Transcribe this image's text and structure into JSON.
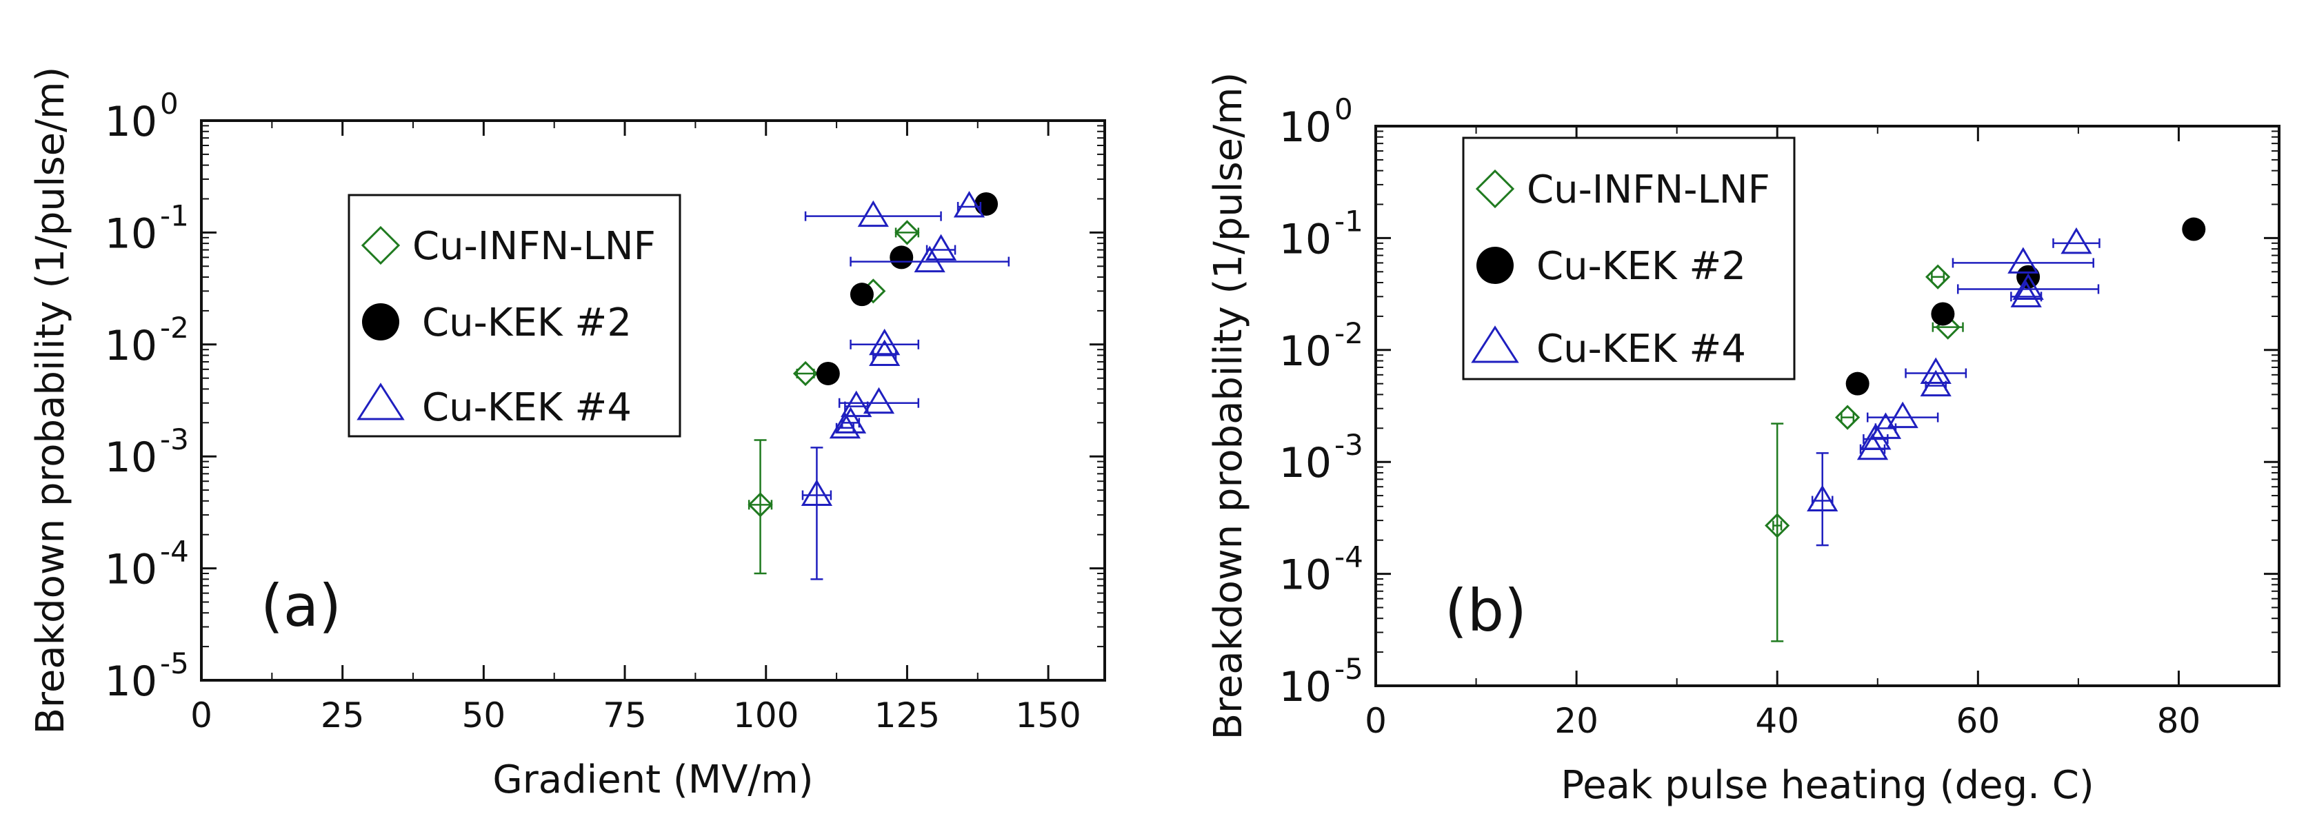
{
  "colors": {
    "inf": "#1f7a1f",
    "kek2": "#000000",
    "kek4": "#1f1fbf",
    "axis": "#111111"
  },
  "chart_data": [
    {
      "type": "scatter",
      "panel_label": "(a)",
      "xlabel": "Gradient (MV/m)",
      "ylabel": "Breakdown probability (1/pulse/m)",
      "xlim": [
        0,
        160
      ],
      "xticks": [
        0,
        25,
        50,
        75,
        100,
        125,
        150
      ],
      "xtick_labels": [
        "0",
        "25",
        "50",
        "75",
        "100",
        "125",
        "150"
      ],
      "ylim_log10": [
        -5,
        0
      ],
      "ytick_labels": [
        {
          "exp": 0,
          "base": "10",
          "sup": "0"
        },
        {
          "exp": -1,
          "base": "10",
          "sup": "-1"
        },
        {
          "exp": -2,
          "base": "10",
          "sup": "-2"
        },
        {
          "exp": -3,
          "base": "10",
          "sup": "-3"
        },
        {
          "exp": -4,
          "base": "10",
          "sup": "-4"
        },
        {
          "exp": -5,
          "base": "10",
          "sup": "-5"
        }
      ],
      "legend": {
        "position": "upper-left",
        "entries": [
          {
            "key": "inf",
            "label": "Cu-INFN-LNF",
            "marker": "diamond"
          },
          {
            "key": "kek2",
            "label": "Cu-KEK #2",
            "marker": "circle"
          },
          {
            "key": "kek4",
            "label": "Cu-KEK #4",
            "marker": "triangle"
          }
        ]
      },
      "series": [
        {
          "key": "inf",
          "name": "Cu-INFN-LNF",
          "marker": "diamond",
          "points": [
            {
              "x": 99,
              "y": 0.00037,
              "xerr": 2,
              "ylo": 9e-05,
              "yhi": 0.0014
            },
            {
              "x": 107,
              "y": 0.0055,
              "xerr": 1.5
            },
            {
              "x": 119,
              "y": 0.03
            },
            {
              "x": 125,
              "y": 0.1,
              "xerr": 2
            }
          ]
        },
        {
          "key": "kek2",
          "name": "Cu-KEK #2",
          "marker": "circle",
          "points": [
            {
              "x": 111,
              "y": 0.0055
            },
            {
              "x": 117,
              "y": 0.028
            },
            {
              "x": 124,
              "y": 0.06
            },
            {
              "x": 139,
              "y": 0.18
            }
          ]
        },
        {
          "key": "kek4",
          "name": "Cu-KEK #4",
          "marker": "triangle",
          "points": [
            {
              "x": 109,
              "y": 0.00045,
              "xerr": 2.5,
              "ylo": 8e-05,
              "yhi": 0.0012
            },
            {
              "x": 114,
              "y": 0.0018,
              "xerr": 1.5
            },
            {
              "x": 115,
              "y": 0.002,
              "xerr": 1.5
            },
            {
              "x": 116,
              "y": 0.0028,
              "xerr": 2
            },
            {
              "x": 120,
              "y": 0.003,
              "xerr": 7
            },
            {
              "x": 121,
              "y": 0.008,
              "xerr": 2
            },
            {
              "x": 121,
              "y": 0.01,
              "xerr": 6
            },
            {
              "x": 119,
              "y": 0.14,
              "xerr": 12
            },
            {
              "x": 129,
              "y": 0.055,
              "xerr": 14
            },
            {
              "x": 131,
              "y": 0.07,
              "xerr": 2.5
            },
            {
              "x": 136,
              "y": 0.17,
              "xerr": 2
            }
          ]
        }
      ]
    },
    {
      "type": "scatter",
      "panel_label": "(b)",
      "xlabel": "Peak pulse heating (deg. C)",
      "ylabel": "Breakdown probability (1/pulse/m)",
      "xlim": [
        0,
        90
      ],
      "xticks": [
        0,
        20,
        40,
        60,
        80
      ],
      "xtick_labels": [
        "0",
        "20",
        "40",
        "60",
        "80"
      ],
      "ylim_log10": [
        -5,
        0
      ],
      "ytick_labels": [
        {
          "exp": 0,
          "base": "10",
          "sup": "0"
        },
        {
          "exp": -1,
          "base": "10",
          "sup": "-1"
        },
        {
          "exp": -2,
          "base": "10",
          "sup": "-2"
        },
        {
          "exp": -3,
          "base": "10",
          "sup": "-3"
        },
        {
          "exp": -4,
          "base": "10",
          "sup": "-4"
        },
        {
          "exp": -5,
          "base": "10",
          "sup": "-5"
        }
      ],
      "legend": {
        "position": "upper-left",
        "entries": [
          {
            "key": "inf",
            "label": "Cu-INFN-LNF",
            "marker": "diamond"
          },
          {
            "key": "kek2",
            "label": "Cu-KEK #2",
            "marker": "circle"
          },
          {
            "key": "kek4",
            "label": "Cu-KEK #4",
            "marker": "triangle"
          }
        ]
      },
      "series": [
        {
          "key": "inf",
          "name": "Cu-INFN-LNF",
          "marker": "diamond",
          "points": [
            {
              "x": 40,
              "y": 0.00027,
              "xerr": 0.4,
              "ylo": 2.5e-05,
              "yhi": 0.0022
            },
            {
              "x": 47,
              "y": 0.0025,
              "xerr": 0.6
            },
            {
              "x": 56,
              "y": 0.045,
              "xerr": 0.6
            },
            {
              "x": 57,
              "y": 0.016,
              "xerr": 1.5
            }
          ]
        },
        {
          "key": "kek2",
          "name": "Cu-KEK #2",
          "marker": "circle",
          "points": [
            {
              "x": 48,
              "y": 0.005
            },
            {
              "x": 56.5,
              "y": 0.021
            },
            {
              "x": 65,
              "y": 0.045
            },
            {
              "x": 81.5,
              "y": 0.12
            }
          ]
        },
        {
          "key": "kek4",
          "name": "Cu-KEK #4",
          "marker": "triangle",
          "points": [
            {
              "x": 44.5,
              "y": 0.00045,
              "xerr": 1,
              "ylo": 0.00018,
              "yhi": 0.0012
            },
            {
              "x": 49.5,
              "y": 0.0013,
              "xerr": 1.2
            },
            {
              "x": 49.8,
              "y": 0.0016,
              "xerr": 1.2
            },
            {
              "x": 50.8,
              "y": 0.002,
              "xerr": 1
            },
            {
              "x": 52.5,
              "y": 0.0025,
              "xerr": 3.5
            },
            {
              "x": 55.8,
              "y": 0.0048,
              "xerr": 1
            },
            {
              "x": 55.8,
              "y": 0.0062,
              "xerr": 3
            },
            {
              "x": 64.5,
              "y": 0.06,
              "xerr": 7
            },
            {
              "x": 65,
              "y": 0.035,
              "xerr": 7
            },
            {
              "x": 64.8,
              "y": 0.03,
              "xerr": 1.5
            },
            {
              "x": 69.8,
              "y": 0.09,
              "xerr": 2.3
            }
          ]
        }
      ]
    }
  ]
}
